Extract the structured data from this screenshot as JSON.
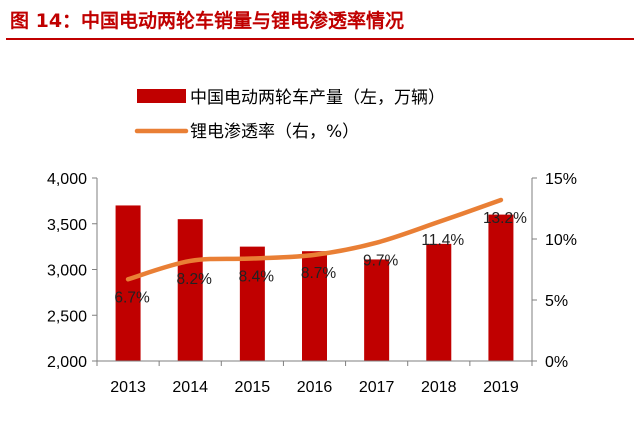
{
  "header": {
    "title": "图 14：中国电动两轮车销量与锂电渗透率情况"
  },
  "colors": {
    "accent": "#c00000",
    "bar": "#c00000",
    "line": "#e97f35",
    "axis": "#7f7f7f"
  },
  "chart_data": {
    "type": "bar",
    "categories": [
      "2013",
      "2014",
      "2015",
      "2016",
      "2017",
      "2018",
      "2019"
    ],
    "series": [
      {
        "name": "中国电动两轮车产量（左，万辆）",
        "type": "bar",
        "axis": "left",
        "values": [
          3700,
          3550,
          3250,
          3200,
          3110,
          3280,
          3600
        ]
      },
      {
        "name": "锂电渗透率（右，%）",
        "type": "line",
        "axis": "right",
        "values": [
          6.7,
          8.2,
          8.4,
          8.7,
          9.7,
          11.4,
          13.2
        ],
        "labels": [
          "6.7%",
          "8.2%",
          "8.4%",
          "8.7%",
          "9.7%",
          "11.4%",
          "13.2%"
        ]
      }
    ],
    "y_left": {
      "lim": [
        2000,
        4000
      ],
      "ticks": [
        2000,
        2500,
        3000,
        3500,
        4000
      ],
      "tick_labels": [
        "2,000",
        "2,500",
        "3,000",
        "3,500",
        "4,000"
      ]
    },
    "y_right": {
      "lim": [
        0,
        15
      ],
      "ticks": [
        0,
        5,
        10,
        15
      ],
      "tick_labels": [
        "0%",
        "5%",
        "10%",
        "15%"
      ]
    },
    "grid": false,
    "legend": "top-center"
  }
}
